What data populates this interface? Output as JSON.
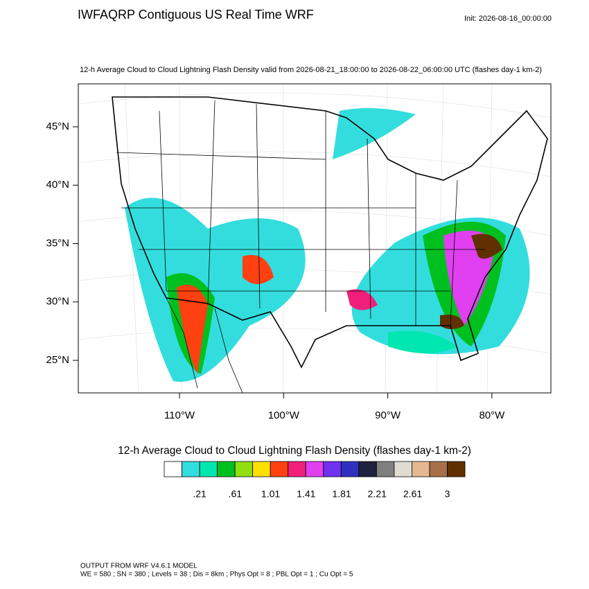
{
  "header": {
    "title": "IWFAQRP Contiguous US Real Time WRF",
    "init": "Init: 2026-08-16_00:00:00",
    "subtitle": "12-h Average Cloud to Cloud Lightning Flash Density valid from 2026-08-21_18:00:00 to 2026-08-22_06:00:00 UTC   (flashes day-1 km-2)"
  },
  "map": {
    "lat_ticks": [
      {
        "value": 45,
        "label": "45°N"
      },
      {
        "value": 40,
        "label": "40°N"
      },
      {
        "value": 35,
        "label": "35°N"
      },
      {
        "value": 30,
        "label": "30°N"
      },
      {
        "value": 25,
        "label": "25°N"
      }
    ],
    "lon_ticks": [
      {
        "value": -110,
        "label": "110°W"
      },
      {
        "value": -100,
        "label": "100°W"
      },
      {
        "value": -90,
        "label": "90°W"
      },
      {
        "value": -80,
        "label": "80°W"
      }
    ]
  },
  "colorbar": {
    "title": "12-h Average Cloud to Cloud Lightning Flash Density  (flashes day-1 km-2)",
    "colors": [
      "#ffffff",
      "#33dddd",
      "#00e6b0",
      "#00c020",
      "#90e010",
      "#ffe000",
      "#ff4010",
      "#f0207a",
      "#e040f0",
      "#7030f0",
      "#3030c0",
      "#202040",
      "#808080",
      "#e0dcd4",
      "#e4b890",
      "#a87048",
      "#603000"
    ],
    "ticks": [
      {
        "value": 0.21,
        "label": ".21"
      },
      {
        "value": 0.61,
        "label": ".61"
      },
      {
        "value": 1.01,
        "label": "1.01"
      },
      {
        "value": 1.41,
        "label": "1.41"
      },
      {
        "value": 1.81,
        "label": "1.81"
      },
      {
        "value": 2.21,
        "label": "2.21"
      },
      {
        "value": 2.61,
        "label": "2.61"
      },
      3
    ]
  },
  "footer": {
    "line1": "OUTPUT FROM WRF V4.6.1 MODEL",
    "line2": "WE = 580 ; SN = 380 ; Levels = 38 ; Dis = 8km ; Phys Opt = 8 ; PBL Opt = 1 ; Cu Opt = 5"
  }
}
